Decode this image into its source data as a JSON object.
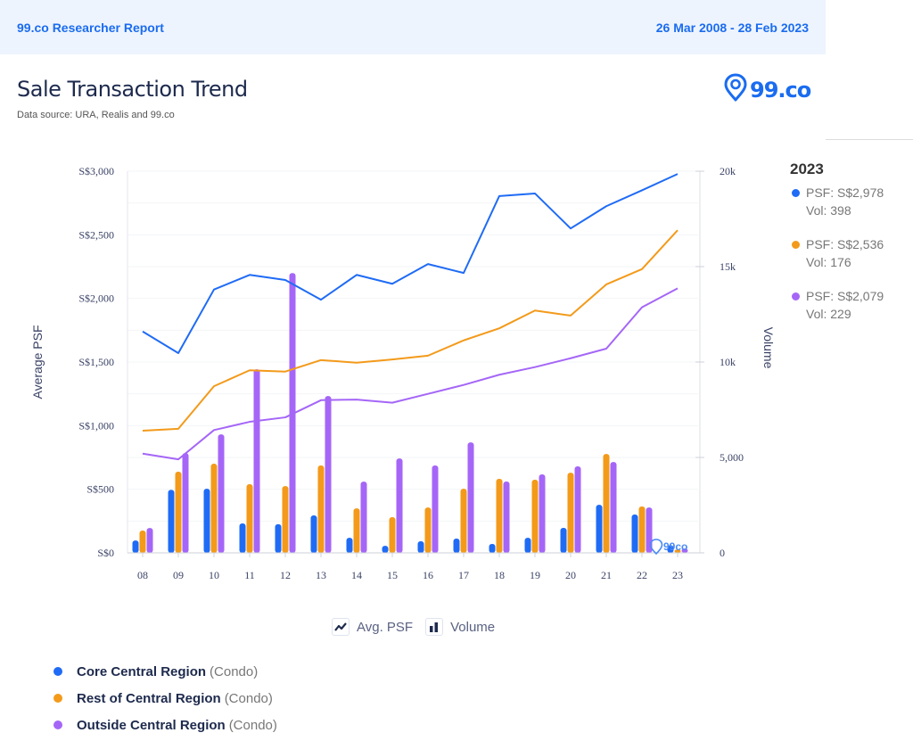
{
  "header": {
    "report_title": "99.co Researcher Report",
    "date_range": "26 Mar 2008 - 28 Feb 2023"
  },
  "page": {
    "title": "Sale Transaction Trend",
    "subtitle": "Data source: URA, Realis and 99.co",
    "logo_text": "99.co",
    "watermark_text": "99co"
  },
  "colors": {
    "core": "#1f6bf5",
    "rest": "#f39a1a",
    "outside": "#a566f7",
    "brand": "#1a6cf0"
  },
  "year_panel": {
    "year": "2023",
    "items": [
      {
        "series": "core",
        "psf": "PSF: S$2,978",
        "vol": "Vol: 398"
      },
      {
        "series": "rest",
        "psf": "PSF: S$2,536",
        "vol": "Vol: 176"
      },
      {
        "series": "outside",
        "psf": "PSF: S$2,079",
        "vol": "Vol: 229"
      }
    ]
  },
  "type_legend": {
    "line_label": "Avg. PSF",
    "bar_label": "Volume"
  },
  "region_legend": [
    {
      "series": "core",
      "name": "Core Central Region",
      "suffix": "(Condo)"
    },
    {
      "series": "rest",
      "name": "Rest of Central Region",
      "suffix": "(Condo)"
    },
    {
      "series": "outside",
      "name": "Outside Central Region",
      "suffix": "(Condo)"
    }
  ],
  "chart_data": {
    "type": "bar+line",
    "title": "Sale Transaction Trend",
    "categories": [
      "08",
      "09",
      "10",
      "11",
      "12",
      "13",
      "14",
      "15",
      "16",
      "17",
      "18",
      "19",
      "20",
      "21",
      "22",
      "23"
    ],
    "y_left": {
      "label": "Average PSF",
      "range": [
        0,
        3000
      ],
      "ticks": [
        0,
        500,
        1000,
        1500,
        2000,
        2500,
        3000
      ],
      "tick_labels": [
        "S$0",
        "S$500",
        "S$1,000",
        "S$1,500",
        "S$2,000",
        "S$2,500",
        "S$3,000"
      ]
    },
    "y_right": {
      "label": "Volume",
      "range": [
        0,
        20000
      ],
      "ticks": [
        0,
        5000,
        10000,
        15000,
        20000
      ],
      "tick_labels": [
        "0",
        "5,000",
        "10k",
        "15k",
        "20k"
      ]
    },
    "grid": true,
    "series": [
      {
        "key": "core",
        "name": "Core Central Region (Condo)",
        "avg_psf": [
          1740,
          1570,
          2070,
          2185,
          2145,
          1990,
          2185,
          2115,
          2270,
          2200,
          2805,
          2825,
          2550,
          2725,
          2850,
          2978
        ],
        "volume": [
          650,
          3300,
          3360,
          1540,
          1500,
          1960,
          790,
          370,
          610,
          750,
          470,
          790,
          1310,
          2520,
          2010,
          398
        ]
      },
      {
        "key": "rest",
        "name": "Rest of Central Region (Condo)",
        "avg_psf": [
          960,
          975,
          1310,
          1435,
          1425,
          1515,
          1495,
          1520,
          1550,
          1670,
          1765,
          1905,
          1865,
          2110,
          2230,
          2536
        ],
        "volume": [
          1170,
          4250,
          4670,
          3600,
          3500,
          4580,
          2330,
          1870,
          2380,
          3360,
          3880,
          3830,
          4200,
          5180,
          2430,
          176
        ]
      },
      {
        "key": "outside",
        "name": "Outside Central Region (Condo)",
        "avg_psf": [
          780,
          735,
          965,
          1030,
          1065,
          1200,
          1205,
          1180,
          1250,
          1320,
          1400,
          1460,
          1530,
          1605,
          1930,
          2079
        ],
        "volume": [
          1300,
          5230,
          6210,
          9620,
          14660,
          8220,
          3730,
          4950,
          4580,
          5790,
          3740,
          4110,
          4530,
          4760,
          2380,
          229
        ]
      }
    ],
    "legend": {
      "position": "bottom",
      "types": [
        "Avg. PSF",
        "Volume"
      ]
    }
  }
}
